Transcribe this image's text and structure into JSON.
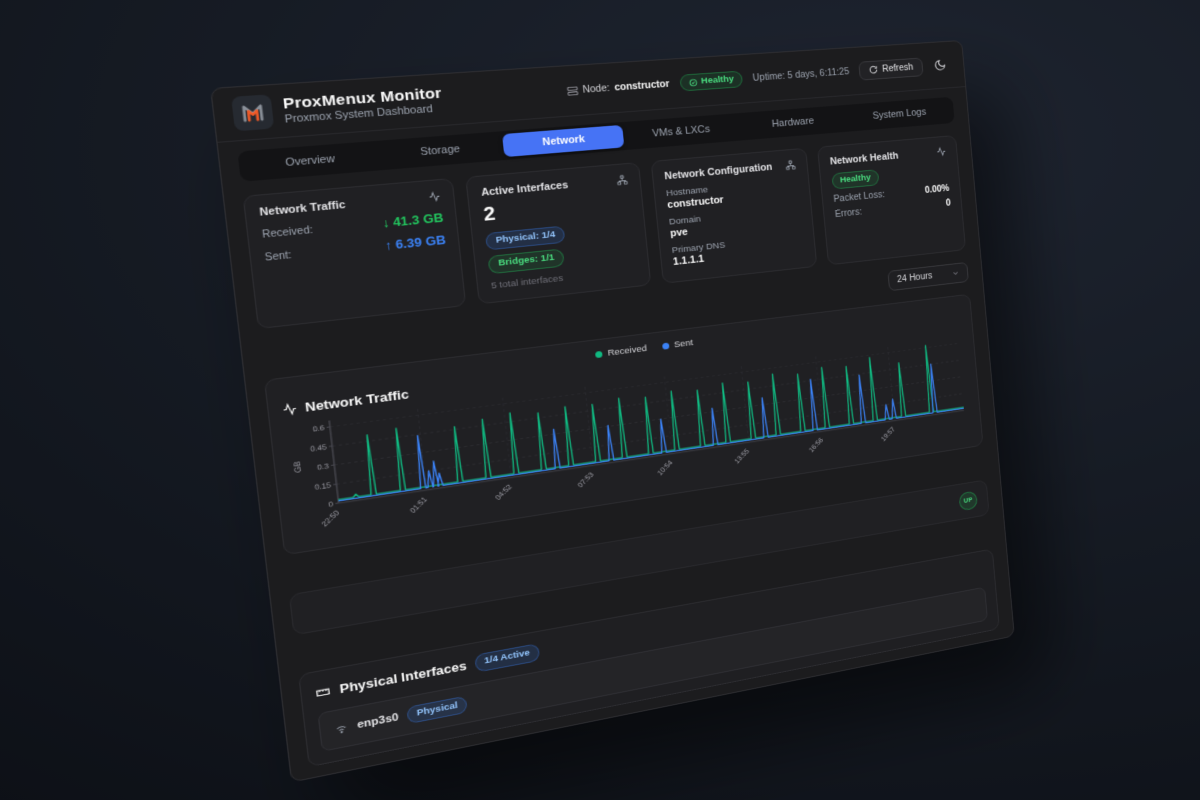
{
  "topbar": {
    "node_label": "Node:",
    "node_value": "constructor",
    "health": "Healthy",
    "uptime": "Uptime: 5 days, 6:11:25",
    "refresh_label": "Refresh"
  },
  "header": {
    "title": "ProxMenux Monitor",
    "subtitle": "Proxmox System Dashboard"
  },
  "tabs": [
    {
      "label": "Overview",
      "active": false
    },
    {
      "label": "Storage",
      "active": false
    },
    {
      "label": "Network",
      "active": true
    },
    {
      "label": "VMs & LXCs",
      "active": false
    },
    {
      "label": "Hardware",
      "active": false
    },
    {
      "label": "System Logs",
      "active": false
    }
  ],
  "cards": {
    "traffic": {
      "title": "Network Traffic",
      "received_label": "Received:",
      "received_value": "↓ 41.3 GB",
      "sent_label": "Sent:",
      "sent_value": "↑ 6.39 GB"
    },
    "interfaces": {
      "title": "Active Interfaces",
      "count": "2",
      "badge_physical": "Physical: 1/4",
      "badge_bridges": "Bridges: 1/1",
      "total": "5 total interfaces"
    },
    "config": {
      "title": "Network Configuration",
      "hostname_label": "Hostname",
      "hostname": "constructor",
      "domain_label": "Domain",
      "domain": "pve",
      "dns_label": "Primary DNS",
      "dns": "1.1.1.1"
    },
    "health": {
      "title": "Network Health",
      "status": "Healthy",
      "packet_loss_label": "Packet Loss:",
      "packet_loss": "0.00%",
      "errors_label": "Errors:",
      "errors": "0"
    }
  },
  "range_select": {
    "value": "24 Hours"
  },
  "chart_section": {
    "title": "Network Traffic"
  },
  "chart_data": {
    "type": "line",
    "title": "Network Traffic",
    "ylabel": "GB",
    "ylim": [
      0,
      0.65
    ],
    "y_ticks": [
      0,
      0.15,
      0.3,
      0.45,
      0.6
    ],
    "x_range_hours": 24,
    "x_tick_hours": [
      0,
      3,
      6,
      9,
      12,
      15,
      18,
      21
    ],
    "x_tick_labels": [
      "22:50",
      "01:51",
      "04:52",
      "07:53",
      "10:54",
      "13:55",
      "16:56",
      "19:57"
    ],
    "grid": "dashed",
    "legend_position": "top-center",
    "series": [
      {
        "name": "Received",
        "color": "#10b981",
        "baseline": 0.028,
        "spikes": [
          [
            0.6,
            0.05
          ],
          [
            1.2,
            0.5
          ],
          [
            2.2,
            0.52
          ],
          [
            4.2,
            0.47
          ],
          [
            5.2,
            0.5
          ],
          [
            6.2,
            0.52
          ],
          [
            7.2,
            0.49
          ],
          [
            8.2,
            0.51
          ],
          [
            9.2,
            0.5
          ],
          [
            10.2,
            0.52
          ],
          [
            11.2,
            0.5
          ],
          [
            12.2,
            0.52
          ],
          [
            13.2,
            0.5
          ],
          [
            14.2,
            0.53
          ],
          [
            15.2,
            0.51
          ],
          [
            16.2,
            0.55
          ],
          [
            17.2,
            0.52
          ],
          [
            18.2,
            0.55
          ],
          [
            19.2,
            0.53
          ],
          [
            20.2,
            0.58
          ],
          [
            21.4,
            0.5
          ],
          [
            22.6,
            0.62
          ]
        ]
      },
      {
        "name": "Sent",
        "color": "#3b82f6",
        "baseline": 0.018,
        "spikes": [
          [
            2.9,
            0.44
          ],
          [
            3.15,
            0.15
          ],
          [
            3.35,
            0.22
          ],
          [
            3.5,
            0.12
          ],
          [
            7.7,
            0.34
          ],
          [
            9.7,
            0.31
          ],
          [
            11.7,
            0.3
          ],
          [
            13.7,
            0.33
          ],
          [
            15.7,
            0.36
          ],
          [
            17.7,
            0.46
          ],
          [
            19.7,
            0.44
          ],
          [
            20.7,
            0.15
          ],
          [
            21.0,
            0.19
          ],
          [
            22.75,
            0.45
          ]
        ]
      }
    ]
  },
  "up_row": {
    "status": "UP"
  },
  "physical": {
    "title": "Physical Interfaces",
    "badge": "1/4 Active",
    "rows": [
      {
        "name": "enp3s0",
        "badge": "Physical"
      }
    ]
  }
}
